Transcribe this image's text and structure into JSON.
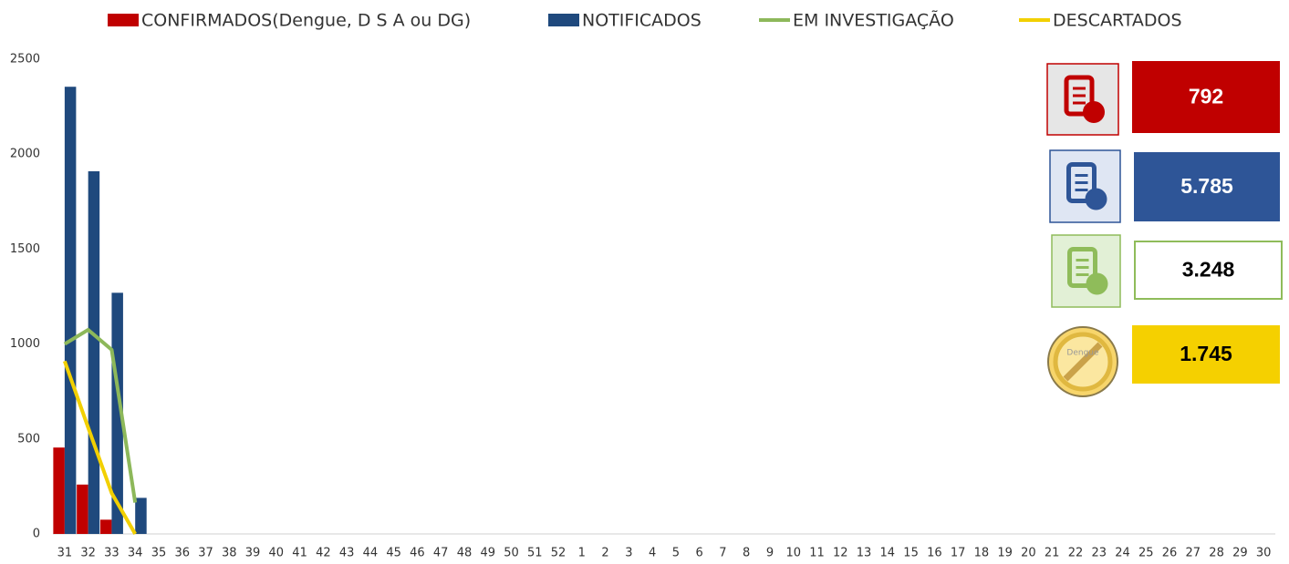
{
  "chart_data": {
    "type": "bar",
    "categories": [
      "31",
      "32",
      "33",
      "34",
      "35",
      "36",
      "37",
      "38",
      "39",
      "40",
      "41",
      "42",
      "43",
      "44",
      "45",
      "46",
      "47",
      "48",
      "49",
      "50",
      "51",
      "52",
      "1",
      "2",
      "3",
      "4",
      "5",
      "6",
      "7",
      "8",
      "9",
      "10",
      "11",
      "12",
      "13",
      "14",
      "15",
      "16",
      "17",
      "18",
      "19",
      "20",
      "21",
      "22",
      "23",
      "24",
      "25",
      "26",
      "27",
      "28",
      "29",
      "30"
    ],
    "ylim": [
      0,
      2500
    ],
    "yticks": [
      0,
      500,
      1000,
      1500,
      2000,
      2500
    ],
    "grid": false,
    "legend": "top",
    "series": [
      {
        "name": "CONFIRMADOS(Dengue, D S A ou DG)",
        "type": "bar",
        "color": "#c00000",
        "values": [
          455,
          260,
          75,
          0,
          null,
          null,
          null,
          null,
          null,
          null,
          null,
          null,
          null,
          null,
          null,
          null,
          null,
          null,
          null,
          null,
          null,
          null,
          null,
          null,
          null,
          null,
          null,
          null,
          null,
          null,
          null,
          null,
          null,
          null,
          null,
          null,
          null,
          null,
          null,
          null,
          null,
          null,
          null,
          null,
          null,
          null,
          null,
          null,
          null,
          null,
          null,
          null
        ]
      },
      {
        "name": "NOTIFICADOS",
        "type": "bar",
        "color": "#1f497d",
        "values": [
          2355,
          1910,
          1270,
          190,
          null,
          null,
          null,
          null,
          null,
          null,
          null,
          null,
          null,
          null,
          null,
          null,
          null,
          null,
          null,
          null,
          null,
          null,
          null,
          null,
          null,
          null,
          null,
          null,
          null,
          null,
          null,
          null,
          null,
          null,
          null,
          null,
          null,
          null,
          null,
          null,
          null,
          null,
          null,
          null,
          null,
          null,
          null,
          null,
          null,
          null,
          null,
          null
        ]
      },
      {
        "name": "EM INVESTIGAÇÃO",
        "type": "line",
        "color": "#8db85a",
        "values": [
          1000,
          1075,
          970,
          165,
          null,
          null,
          null,
          null,
          null,
          null,
          null,
          null,
          null,
          null,
          null,
          null,
          null,
          null,
          null,
          null,
          null,
          null,
          null,
          null,
          null,
          null,
          null,
          null,
          null,
          null,
          null,
          null,
          null,
          null,
          null,
          null,
          null,
          null,
          null,
          null,
          null,
          null,
          null,
          null,
          null,
          null,
          null,
          null,
          null,
          null,
          null,
          null
        ]
      },
      {
        "name": "DESCARTADOS",
        "type": "line",
        "color": "#f2d000",
        "values": [
          910,
          560,
          215,
          0,
          null,
          null,
          null,
          null,
          null,
          null,
          null,
          null,
          null,
          null,
          null,
          null,
          null,
          null,
          null,
          null,
          null,
          null,
          null,
          null,
          null,
          null,
          null,
          null,
          null,
          null,
          null,
          null,
          null,
          null,
          null,
          null,
          null,
          null,
          null,
          null,
          null,
          null,
          null,
          null,
          null,
          null,
          null,
          null,
          null,
          null,
          null,
          null
        ]
      }
    ]
  },
  "cards": [
    {
      "value": "792",
      "color": "#c00000"
    },
    {
      "value": "5.785",
      "color": "#2e5597"
    },
    {
      "value": "3.248",
      "color": "#8fbc5a"
    },
    {
      "value": "1.745",
      "color": "#f5d000"
    }
  ],
  "icon_text": "Dengue"
}
